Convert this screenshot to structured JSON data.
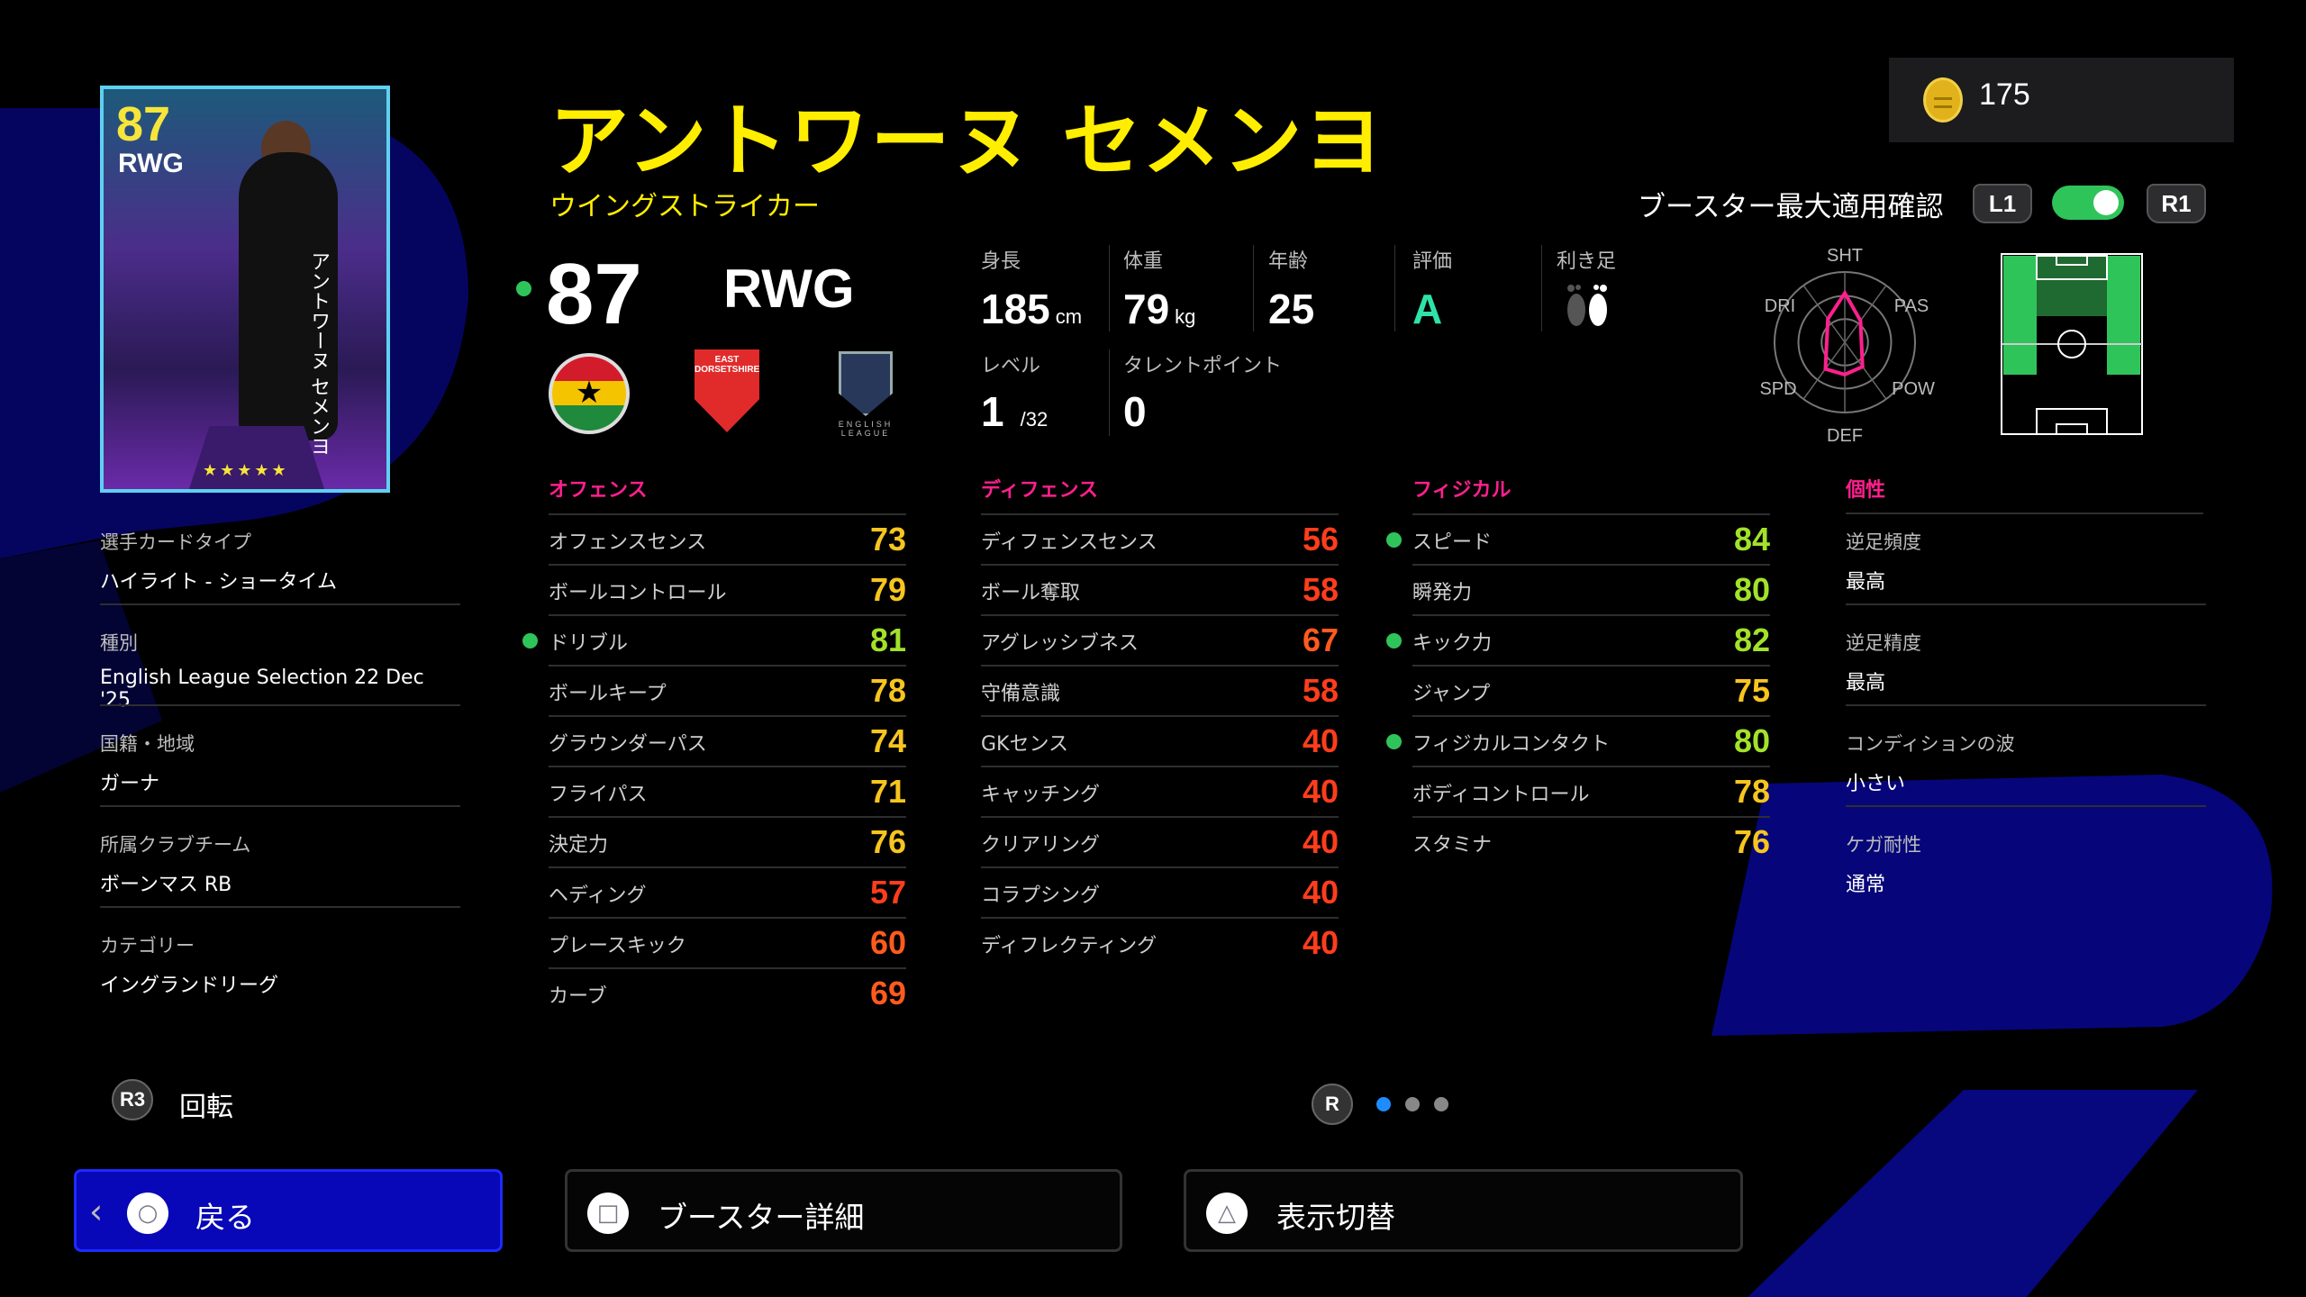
{
  "player": {
    "name": "アントワーヌ セメンヨ",
    "playstyle": "ウイングストライカー",
    "overall": "87",
    "position": "RWG",
    "nationality_flag": "ghana-flag",
    "club_crest_text": "EAST DORSETSHIRE",
    "league_text": "ENGLISH LEAGUE"
  },
  "card": {
    "overall": "87",
    "position": "RWG",
    "vertical_name": "アントワーヌ セメンヨ",
    "stars": "★★★★★"
  },
  "coins": {
    "icon": "efootball-coin-icon",
    "value": "175"
  },
  "booster": {
    "label": "ブースター最大適用確認",
    "l1": "L1",
    "r1": "R1",
    "toggle_on": true,
    "toggle_color": "#2fc45a"
  },
  "info": {
    "height_label": "身長",
    "height": "185",
    "height_unit": "cm",
    "weight_label": "体重",
    "weight": "79",
    "weight_unit": "kg",
    "age_label": "年齢",
    "age": "25",
    "rating_label": "評価",
    "rating": "A",
    "foot_label": "利き足",
    "foot": "right-foot-icon",
    "level_label": "レベル",
    "level": "1",
    "level_max": "/32",
    "talent_label": "タレントポイント",
    "talent": "0"
  },
  "radar": {
    "labels": [
      "SHT",
      "PAS",
      "POW",
      "DEF",
      "SPD",
      "DRI"
    ],
    "values": [
      0.7,
      0.38,
      0.43,
      0.46,
      0.47,
      0.41
    ],
    "color": "#ff1f8e"
  },
  "pitch": {
    "position": "RWG",
    "highlight_color": "#2fc45a"
  },
  "stat_colors": {
    "green": "#a2e22a",
    "yellow": "#f7c51e",
    "orange": "#ff5a1f",
    "red": "#ff3d1c"
  },
  "sections": [
    {
      "title": "オフェンス",
      "stats": [
        {
          "label": "オフェンスセンス",
          "value": 73
        },
        {
          "label": "ボールコントロール",
          "value": 79
        },
        {
          "label": "ドリブル",
          "value": 81,
          "boosted": true
        },
        {
          "label": "ボールキープ",
          "value": 78
        },
        {
          "label": "グラウンダーパス",
          "value": 74
        },
        {
          "label": "フライパス",
          "value": 71
        },
        {
          "label": "決定力",
          "value": 76
        },
        {
          "label": "ヘディング",
          "value": 57
        },
        {
          "label": "プレースキック",
          "value": 60
        },
        {
          "label": "カーブ",
          "value": 69
        }
      ]
    },
    {
      "title": "ディフェンス",
      "stats": [
        {
          "label": "ディフェンスセンス",
          "value": 56
        },
        {
          "label": "ボール奪取",
          "value": 58
        },
        {
          "label": "アグレッシブネス",
          "value": 67
        },
        {
          "label": "守備意識",
          "value": 58
        },
        {
          "label": "GKセンス",
          "value": 40
        },
        {
          "label": "キャッチング",
          "value": 40
        },
        {
          "label": "クリアリング",
          "value": 40
        },
        {
          "label": "コラプシング",
          "value": 40
        },
        {
          "label": "ディフレクティング",
          "value": 40
        }
      ]
    },
    {
      "title": "フィジカル",
      "stats": [
        {
          "label": "スピード",
          "value": 84,
          "boosted": true
        },
        {
          "label": "瞬発力",
          "value": 80
        },
        {
          "label": "キック力",
          "value": 82,
          "boosted": true
        },
        {
          "label": "ジャンプ",
          "value": 75
        },
        {
          "label": "フィジカルコンタクト",
          "value": 80,
          "boosted": true
        },
        {
          "label": "ボディコントロール",
          "value": 78
        },
        {
          "label": "スタミナ",
          "value": 76
        }
      ]
    }
  ],
  "traits": {
    "title": "個性",
    "items": [
      {
        "label": "逆足頻度",
        "value": "最高"
      },
      {
        "label": "逆足精度",
        "value": "最高"
      },
      {
        "label": "コンディションの波",
        "value": "小さい"
      },
      {
        "label": "ケガ耐性",
        "value": "通常"
      }
    ]
  },
  "details": [
    {
      "label": "選手カードタイプ",
      "value": "ハイライト - ショータイム"
    },
    {
      "label": "種別",
      "value": "English League Selection 22 Dec '25"
    },
    {
      "label": "国籍・地域",
      "value": "ガーナ"
    },
    {
      "label": "所属クラブチーム",
      "value": "ボーンマス RB"
    },
    {
      "label": "カテゴリー",
      "value": "イングランドリーグ"
    }
  ],
  "controls": {
    "rotate_key": "R3",
    "rotate_label": "回転",
    "page_key": "R",
    "page_count": 3,
    "page_current": 1,
    "page_active_color": "#1e8cff"
  },
  "buttons": {
    "back": "戻る",
    "booster_detail": "ブースター詳細",
    "toggle_view": "表示切替"
  }
}
